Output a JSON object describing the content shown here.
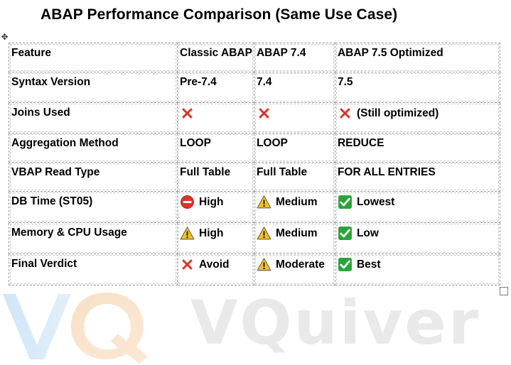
{
  "title": "ABAP Performance Comparison (Same Use Case)",
  "watermark": {
    "text": "VQuiver",
    "logo_letters": "VQ"
  },
  "colors": {
    "cross": "#d9352a",
    "check_bg": "#2aa43a",
    "warning_fill": "#f3c020",
    "no_entry": "#d9352a"
  },
  "table": {
    "headers": [
      "Feature",
      "Classic ABAP",
      "ABAP 7.4",
      "ABAP 7.5 Optimized"
    ],
    "rows": [
      {
        "feature": "Syntax Version",
        "cells": [
          {
            "icon": null,
            "text": "Pre-7.4"
          },
          {
            "icon": null,
            "text": "7.4"
          },
          {
            "icon": null,
            "text": "7.5"
          }
        ]
      },
      {
        "feature": "Joins Used",
        "cells": [
          {
            "icon": "cross-icon",
            "text": ""
          },
          {
            "icon": "cross-icon",
            "text": ""
          },
          {
            "icon": "cross-icon",
            "text": "(Still optimized)"
          }
        ]
      },
      {
        "feature": "Aggregation Method",
        "cells": [
          {
            "icon": null,
            "text": "LOOP"
          },
          {
            "icon": null,
            "text": "LOOP"
          },
          {
            "icon": null,
            "text": "REDUCE"
          }
        ]
      },
      {
        "feature": "VBAP Read Type",
        "cells": [
          {
            "icon": null,
            "text": "Full Table"
          },
          {
            "icon": null,
            "text": "Full Table"
          },
          {
            "icon": null,
            "text": "FOR ALL ENTRIES"
          }
        ]
      },
      {
        "feature": "DB Time (ST05)",
        "cells": [
          {
            "icon": "no-entry-icon",
            "text": "High"
          },
          {
            "icon": "warning-icon",
            "text": "Medium"
          },
          {
            "icon": "check-icon",
            "text": "Lowest"
          }
        ]
      },
      {
        "feature": "Memory & CPU Usage",
        "cells": [
          {
            "icon": "warning-icon",
            "text": "High"
          },
          {
            "icon": "warning-icon",
            "text": "Medium"
          },
          {
            "icon": "check-icon",
            "text": "Low"
          }
        ]
      },
      {
        "feature": "Final Verdict",
        "cells": [
          {
            "icon": "cross-icon",
            "text": "Avoid"
          },
          {
            "icon": "warning-icon",
            "text": "Moderate"
          },
          {
            "icon": "check-icon",
            "text": "Best"
          }
        ]
      }
    ]
  }
}
